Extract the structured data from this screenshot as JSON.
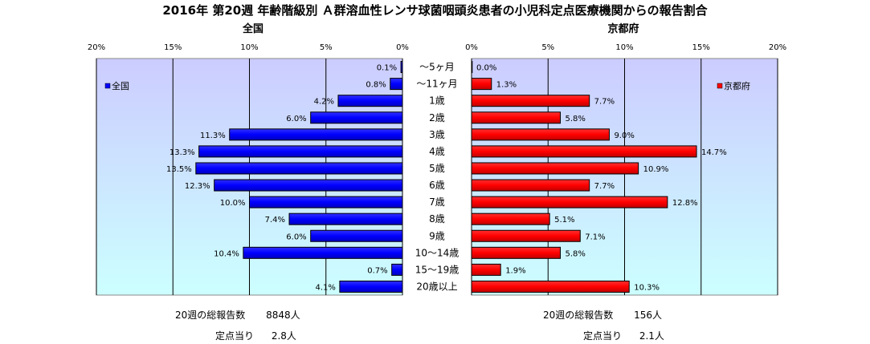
{
  "title": "2016年 第20週 年齢階級別 Ａ群溶血性レンサ球菌咽頭炎患者の小児科定点医療機関からの報告割合",
  "chart_data": {
    "type": "bar",
    "orientation": "horizontal",
    "categories": [
      "～5ヶ月",
      "～11ヶ月",
      "1歳",
      "2歳",
      "3歳",
      "4歳",
      "5歳",
      "6歳",
      "7歳",
      "8歳",
      "9歳",
      "10～14歳",
      "15～19歳",
      "20歳以上"
    ],
    "panels": [
      {
        "subtitle": "全国",
        "legend": "全国",
        "legend_position": "top-left",
        "color": "#0000ff",
        "direction": "left",
        "xlim": [
          0,
          20
        ],
        "tick_labels": [
          "20%",
          "15%",
          "10%",
          "5%",
          "0%"
        ],
        "values": [
          0.1,
          0.8,
          4.2,
          6.0,
          11.3,
          13.3,
          13.5,
          12.3,
          10.0,
          7.4,
          6.0,
          10.4,
          0.7,
          4.1
        ],
        "value_labels": [
          "0.1%",
          "0.8%",
          "4.2%",
          "6.0%",
          "11.3%",
          "13.3%",
          "13.5%",
          "12.3%",
          "10.0%",
          "7.4%",
          "6.0%",
          "10.4%",
          "0.7%",
          "4.1%"
        ]
      },
      {
        "subtitle": "京都府",
        "legend": "京都府",
        "legend_position": "top-right",
        "color": "#ff0000",
        "direction": "right",
        "xlim": [
          0,
          20
        ],
        "tick_labels": [
          "0%",
          "5%",
          "10%",
          "15%",
          "20%"
        ],
        "values": [
          0.0,
          1.3,
          7.7,
          5.8,
          9.0,
          14.7,
          10.9,
          7.7,
          12.8,
          5.1,
          7.1,
          5.8,
          1.9,
          10.3
        ],
        "value_labels": [
          "0.0%",
          "1.3%",
          "7.7%",
          "5.8%",
          "9.0%",
          "14.7%",
          "10.9%",
          "7.7%",
          "12.8%",
          "5.1%",
          "7.1%",
          "5.8%",
          "1.9%",
          "10.3%"
        ]
      }
    ],
    "grid": true
  },
  "summary": {
    "national": {
      "total_label": "20週の総報告数",
      "total_value": "8848人",
      "per_label": "定点当り",
      "per_value": "2.8人"
    },
    "kyoto": {
      "total_label": "20週の総報告数",
      "total_value": "156人",
      "per_label": "定点当り",
      "per_value": "2.1人"
    }
  },
  "colors": {
    "plot_bg_top": "#ccccff",
    "plot_bg_bottom": "#ccffff",
    "national": "#0000ff",
    "kyoto": "#ff0000"
  }
}
